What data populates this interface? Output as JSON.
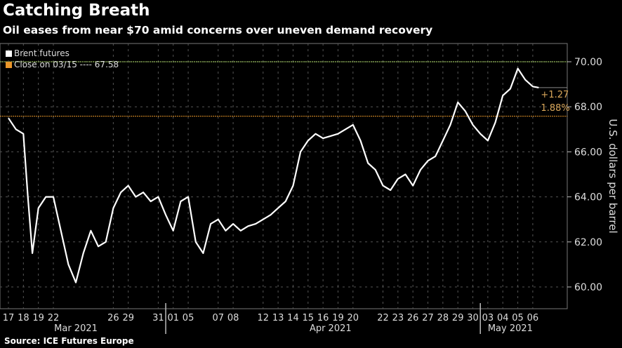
{
  "title": "Catching Breath",
  "subtitle": "Oil eases from near $70 amid concerns over uneven demand recovery",
  "source": "Source: ICE Futures Europe",
  "colors": {
    "series": "#ffffff",
    "reference": "#e8962a",
    "high_line": "#7a9a4a",
    "background": "#000000",
    "annotation": "#d9a75a"
  },
  "chart_data": {
    "type": "line",
    "title": "Catching Breath",
    "ylabel": "U.S. dollars per barrel",
    "ylim": [
      59.2,
      70.8
    ],
    "yticks": [
      60,
      62,
      64,
      66,
      68,
      70
    ],
    "ytick_labels": [
      "60.00",
      "62.00",
      "64.00",
      "66.00",
      "68.00",
      "70.00"
    ],
    "grid": true,
    "legend_position": "top-left",
    "legend": [
      {
        "label": "Brent futures",
        "color": "#ffffff"
      },
      {
        "label": "Close on 03/15 ---- 67.58",
        "color": "#e8962a"
      }
    ],
    "reference_value": 67.58,
    "high_reference": 70.0,
    "annotations": {
      "change": "+1.27",
      "percent": "1.88%"
    },
    "x_labels": [
      {
        "i": 0,
        "t": "17"
      },
      {
        "i": 1,
        "t": "18"
      },
      {
        "i": 2,
        "t": "19"
      },
      {
        "i": 3,
        "t": "22"
      },
      {
        "i": 7,
        "t": "26"
      },
      {
        "i": 8,
        "t": "29"
      },
      {
        "i": 10,
        "t": "31"
      },
      {
        "i": 11,
        "t": "01"
      },
      {
        "i": 12,
        "t": "05"
      },
      {
        "i": 14,
        "t": "07"
      },
      {
        "i": 15,
        "t": "08"
      },
      {
        "i": 17,
        "t": "12"
      },
      {
        "i": 18,
        "t": "13"
      },
      {
        "i": 19,
        "t": "14"
      },
      {
        "i": 20,
        "t": "15"
      },
      {
        "i": 21,
        "t": "16"
      },
      {
        "i": 22,
        "t": "19"
      },
      {
        "i": 23,
        "t": "20"
      },
      {
        "i": 25,
        "t": "22"
      },
      {
        "i": 26,
        "t": "23"
      },
      {
        "i": 27,
        "t": "26"
      },
      {
        "i": 28,
        "t": "27"
      },
      {
        "i": 29,
        "t": "28"
      },
      {
        "i": 30,
        "t": "29"
      },
      {
        "i": 31,
        "t": "30"
      },
      {
        "i": 32,
        "t": "03"
      },
      {
        "i": 33,
        "t": "04"
      },
      {
        "i": 34,
        "t": "05"
      },
      {
        "i": 35,
        "t": "06"
      }
    ],
    "months": [
      {
        "label": "Mar 2021",
        "center": 4.5,
        "start": 0
      },
      {
        "label": "Apr 2021",
        "center": 21.5,
        "start": 10.5
      },
      {
        "label": "May 2021",
        "center": 33.5,
        "start": 31.5
      }
    ],
    "series": [
      {
        "name": "Brent futures",
        "x": [
          0,
          0.5,
          1,
          1.3,
          1.6,
          2,
          2.5,
          3,
          3.5,
          4,
          4.5,
          5,
          5.5,
          6,
          6.5,
          7,
          7.5,
          8,
          8.5,
          9,
          9.5,
          10,
          10.5,
          11,
          11.5,
          12,
          12.5,
          13,
          13.5,
          14,
          14.5,
          15,
          15.5,
          16,
          16.5,
          17,
          17.5,
          18,
          18.5,
          19,
          19.5,
          20,
          20.5,
          21,
          21.5,
          22,
          22.5,
          23,
          23.5,
          24,
          24.5,
          25,
          25.5,
          26,
          26.5,
          27,
          27.5,
          28,
          28.5,
          29,
          29.5,
          30,
          30.5,
          31,
          31.5,
          32,
          32.5,
          33,
          33.5,
          34,
          34.5,
          35,
          35.4
        ],
        "y": [
          67.5,
          67.0,
          66.8,
          64.0,
          61.5,
          63.5,
          64.0,
          64.0,
          62.5,
          61.0,
          60.2,
          61.5,
          62.5,
          61.8,
          62.0,
          63.5,
          64.2,
          64.5,
          64.0,
          64.2,
          63.8,
          64.0,
          63.2,
          62.5,
          63.8,
          64.0,
          62.0,
          61.5,
          62.8,
          63.0,
          62.5,
          62.8,
          62.5,
          62.7,
          62.8,
          63.0,
          63.2,
          63.5,
          63.8,
          64.5,
          66.0,
          66.5,
          66.8,
          66.6,
          66.7,
          66.8,
          67.0,
          67.2,
          66.5,
          65.5,
          65.2,
          64.5,
          64.3,
          64.8,
          65.0,
          64.5,
          65.2,
          65.6,
          65.8,
          66.5,
          67.2,
          68.2,
          67.8,
          67.2,
          66.8,
          66.5,
          67.3,
          68.5,
          68.8,
          69.7,
          69.2,
          68.9,
          68.85
        ]
      }
    ]
  }
}
